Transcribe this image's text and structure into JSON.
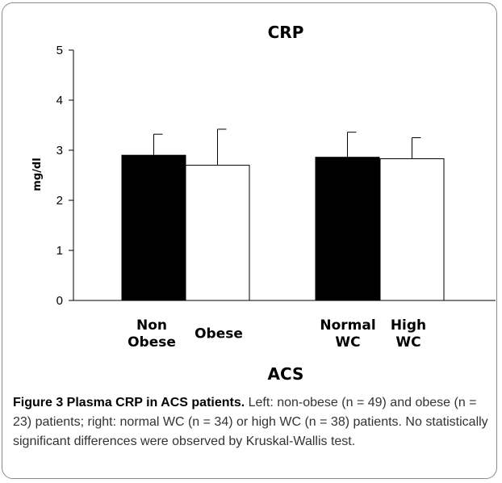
{
  "chart_data": {
    "type": "bar",
    "title": "CRP",
    "ylabel": "mg/dl",
    "xlabel": "ACS",
    "ylim": [
      0,
      5
    ],
    "yticks": [
      0,
      1,
      2,
      3,
      4,
      5
    ],
    "grid": false,
    "legend": "none",
    "bars": [
      {
        "label_lines": [
          "Non",
          "Obese"
        ],
        "value": 2.9,
        "error": 0.42,
        "fill": "#000000"
      },
      {
        "label_lines": [
          "Obese"
        ],
        "value": 2.7,
        "error": 0.72,
        "fill": "#ffffff"
      },
      {
        "label_lines": [
          "Normal",
          "WC"
        ],
        "value": 2.86,
        "error": 0.5,
        "fill": "#000000"
      },
      {
        "label_lines": [
          "High",
          "WC"
        ],
        "value": 2.83,
        "error": 0.42,
        "fill": "#ffffff"
      }
    ]
  },
  "caption": {
    "label": "Figure 3 Plasma CRP in ACS patients.",
    "text": " Left: non-obese (n = 49) and obese (n = 23) patients; right: normal WC (n = 34) or high WC (n = 38) patients. No statistically significant differences were observed by Kruskal-Wallis test."
  }
}
